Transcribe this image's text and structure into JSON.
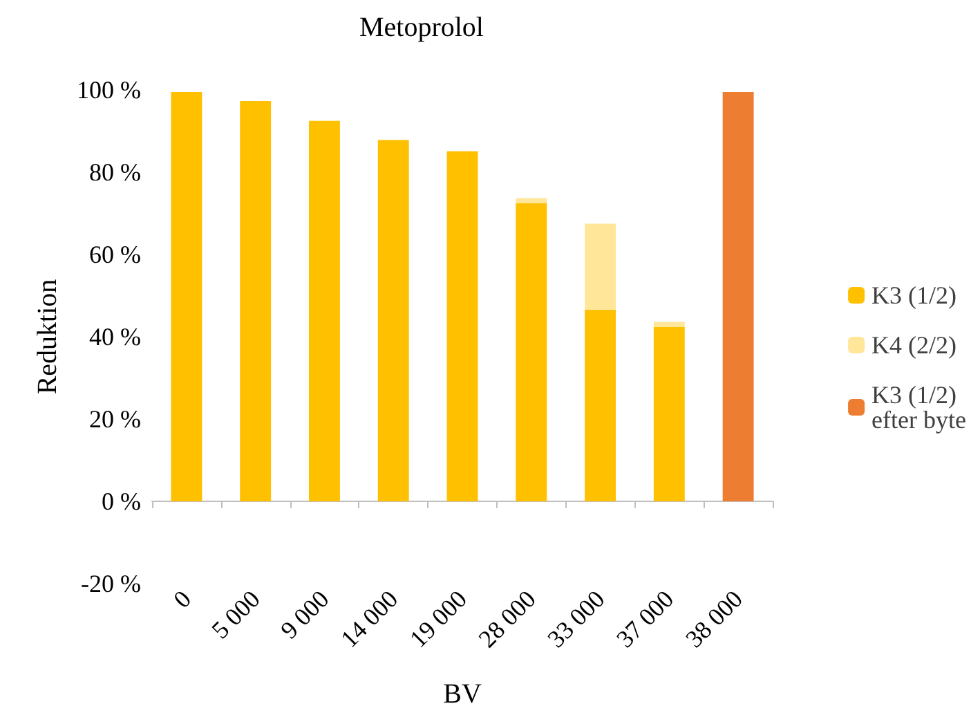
{
  "chart_data": {
    "type": "bar",
    "title": "Metoprolol",
    "xlabel": "BV",
    "ylabel": "Reduktion",
    "stacked": true,
    "legend": "right",
    "categories": [
      "0",
      "5 000",
      "9 000",
      "14 000",
      "19 000",
      "28 000",
      "33 000",
      "37 000",
      "38 000"
    ],
    "series": [
      {
        "name": "K3 (1/2)",
        "color": "#ffc000",
        "values": [
          99.5,
          97.3,
          92.5,
          87.8,
          85.1,
          72.5,
          46.6,
          42.4,
          null
        ]
      },
      {
        "name": "K4 (2/2)",
        "color": "#ffe699",
        "values": [
          null,
          null,
          null,
          null,
          null,
          1.2,
          20.9,
          1.2,
          null
        ]
      },
      {
        "name": "K3 (1/2) efter byte",
        "color": "#ed7d31",
        "values": [
          null,
          null,
          null,
          null,
          null,
          null,
          null,
          null,
          99.5
        ]
      }
    ],
    "ylim": [
      -20,
      100
    ],
    "yticks": [
      {
        "value": -20,
        "label": "-20 %"
      },
      {
        "value": 0,
        "label": "0 %"
      },
      {
        "value": 20,
        "label": "20 %"
      },
      {
        "value": 40,
        "label": "40 %"
      },
      {
        "value": 60,
        "label": "60 %"
      },
      {
        "value": 80,
        "label": "80 %"
      },
      {
        "value": 100,
        "label": "100 %"
      }
    ]
  }
}
